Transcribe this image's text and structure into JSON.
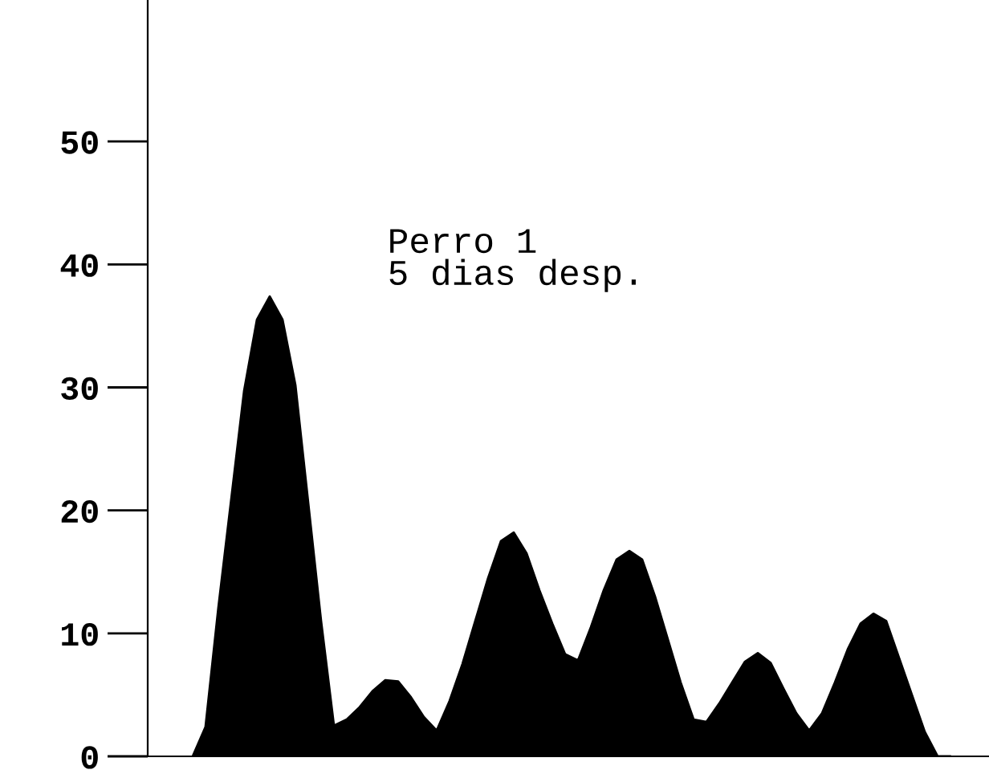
{
  "chart_data": {
    "type": "area",
    "categories": [
      null,
      null,
      null,
      null,
      null,
      null,
      null,
      null,
      null,
      null,
      null,
      null,
      null,
      null,
      null,
      null,
      null,
      null,
      null,
      null,
      null,
      null,
      null,
      null,
      null,
      null,
      null,
      null,
      null,
      null,
      null,
      null,
      null,
      null,
      null,
      null,
      null,
      null,
      null,
      null,
      null,
      null,
      null,
      null,
      null,
      null,
      null,
      null,
      null,
      null,
      null,
      null,
      null,
      null,
      null,
      null,
      null,
      null,
      null,
      null
    ],
    "series": [
      {
        "color": "#000000",
        "values": [
          0,
          2.4,
          12.1,
          20.9,
          29.7,
          35.5,
          37.4,
          35.5,
          30.2,
          20.6,
          11,
          2.5,
          3,
          4,
          5.3,
          6.2,
          6.1,
          4.8,
          3.2,
          2.1,
          4.5,
          7.5,
          11,
          14.5,
          17.5,
          18.2,
          16.5,
          13.5,
          10.8,
          8.3,
          7.8,
          10.5,
          13.5,
          16,
          16.7,
          16,
          13,
          9.5,
          6,
          3,
          2.8,
          4.3,
          6,
          7.7,
          8.4,
          7.6,
          5.5,
          3.5,
          2.1,
          3.5,
          6,
          8.7,
          10.8,
          11.6,
          11,
          8,
          5,
          2,
          0,
          0
        ]
      }
    ],
    "ylim": [
      0,
      61.5
    ],
    "yticks": [
      0,
      10,
      20,
      30,
      40,
      50
    ],
    "tick_labels": "y",
    "grid": false,
    "annotations": [
      "Perro 1\n5 dias desp."
    ]
  }
}
